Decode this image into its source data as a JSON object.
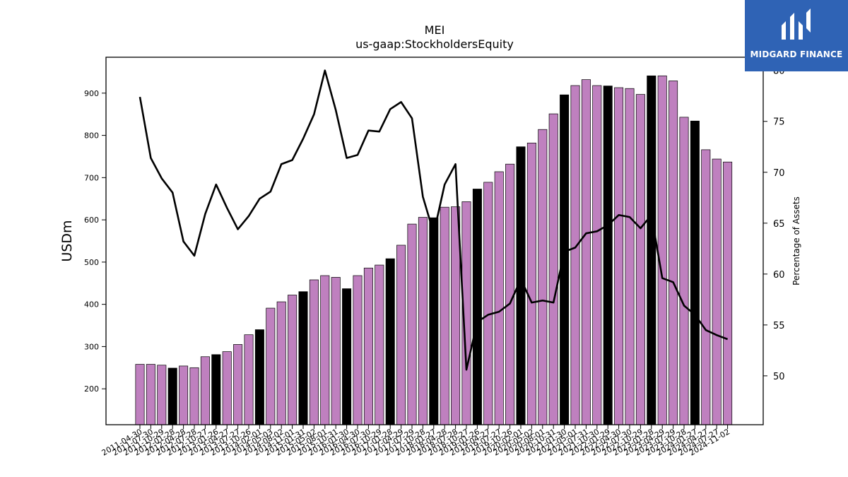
{
  "brand": {
    "name": "MIDGARD FINANCE",
    "logo_icon": "midgard-m-logo-icon",
    "background": "#2f63b5"
  },
  "chart_data": {
    "type": "bar",
    "title": "MEI",
    "subtitle": "us-gaap:StockholdersEquity",
    "ylabel": "USDm",
    "y2label": "Percentage of Assets",
    "ylim": [
      115,
      985
    ],
    "y2lim": [
      45.2,
      81.3
    ],
    "yticks": [
      200,
      300,
      400,
      500,
      600,
      700,
      800,
      900
    ],
    "y2ticks": [
      50,
      55,
      60,
      65,
      70,
      75,
      80
    ],
    "colors": {
      "bar": "#bf80bf",
      "bar_highlight": "#000000",
      "line": "#000000"
    },
    "categories": [
      "2011-04-30",
      "2011-07-30",
      "2011-10-29",
      "2012-01-28",
      "2012-04-28",
      "2012-07-28",
      "2012-10-27",
      "2013-01-26",
      "2013-04-27",
      "2013-07-27",
      "2013-10-26",
      "2014-02-01",
      "2014-05-03",
      "2014-08-02",
      "2014-11-01",
      "2015-01-31",
      "2015-05-02",
      "2015-08-01",
      "2015-10-31",
      "2016-01-30",
      "2016-04-30",
      "2016-07-30",
      "2016-10-29",
      "2017-01-28",
      "2017-04-29",
      "2017-07-29",
      "2017-10-28",
      "2018-01-27",
      "2018-04-28",
      "2018-07-28",
      "2018-10-27",
      "2019-01-26",
      "2019-04-27",
      "2019-07-27",
      "2019-10-26",
      "2020-02-01",
      "2020-05-02",
      "2020-08-01",
      "2020-10-31",
      "2021-01-30",
      "2021-05-01",
      "2021-07-31",
      "2021-10-30",
      "2022-01-29",
      "2022-04-30",
      "2022-07-30",
      "2022-10-29",
      "2023-01-28",
      "2023-04-29",
      "2023-07-29",
      "2023-10-28",
      "2024-01-27",
      "2024-04-27",
      "2024-07-27",
      "2024-11-02"
    ],
    "tick_labels_shown": [
      "2011-04-30",
      "2011-07-30",
      "2011-10-29",
      "2012-01-28",
      "2012-04-28",
      "2012-07-28",
      "2012-10-27",
      "2013-01-26",
      "2013-04-27",
      "2013-07-27",
      "2013-10-26",
      "2014-02-01",
      "2014-05-03",
      "2014-08-02",
      "2014-11-01",
      "2015-01-31",
      "2015-05-02",
      "2015-08-01",
      "2015-10-31",
      "2016-01-30",
      "2016-04-30",
      "2016-07-30",
      "2016-10-29",
      "2017-01-28",
      "2017-04-29",
      "2017-07-29",
      "2017-10-28",
      "2018-01-27",
      "2018-04-28",
      "2018-07-28",
      "2018-10-27",
      "2019-01-26",
      "2019-04-27",
      "2019-07-27",
      "2019-10-26",
      "2020-02-01",
      "2020-05-02",
      "2020-08-01",
      "2020-10-31",
      "2021-01-30",
      "2021-05-01",
      "2021-07-31",
      "2021-10-30",
      "2022-01-29",
      "2022-04-30",
      "2022-07-30",
      "2022-10-29",
      "2023-01-28",
      "2023-04-29",
      "2023-07-29",
      "2023-10-28",
      "2024-01-27",
      "2024-04-27",
      "2024-07-27",
      "2024-11-02"
    ],
    "series": [
      {
        "type": "bar",
        "axis": "left",
        "values": [
          258,
          258,
          256,
          249,
          254,
          250,
          276,
          281,
          288,
          305,
          328,
          340,
          391,
          406,
          422,
          430,
          458,
          468,
          464,
          437,
          468,
          486,
          493,
          508,
          540,
          590,
          606,
          605,
          630,
          631,
          643,
          673,
          689,
          714,
          732,
          773,
          782,
          814,
          851,
          896,
          918,
          932,
          918,
          917,
          913,
          911,
          897,
          941,
          941,
          929,
          843,
          834,
          766,
          744,
          737
        ],
        "highlight": [
          false,
          false,
          false,
          true,
          false,
          false,
          false,
          true,
          false,
          false,
          false,
          true,
          false,
          false,
          false,
          true,
          false,
          false,
          false,
          true,
          false,
          false,
          false,
          true,
          false,
          false,
          false,
          true,
          false,
          false,
          false,
          true,
          false,
          false,
          false,
          true,
          false,
          false,
          false,
          true,
          false,
          false,
          false,
          true,
          false,
          false,
          false,
          true,
          false,
          false,
          false,
          true,
          false,
          false,
          false
        ]
      },
      {
        "type": "line",
        "axis": "right",
        "values": [
          77.4,
          71.4,
          69.4,
          68.0,
          63.2,
          61.8,
          65.9,
          68.8,
          66.5,
          64.4,
          65.7,
          67.4,
          68.1,
          70.8,
          71.2,
          73.3,
          75.7,
          80.0,
          76.1,
          71.4,
          71.7,
          74.1,
          74.0,
          76.2,
          76.9,
          75.3,
          67.6,
          64.0,
          68.8,
          70.8,
          50.6,
          55.3,
          56.0,
          56.3,
          57.1,
          59.5,
          57.2,
          57.4,
          57.2,
          62.2,
          62.6,
          64.0,
          64.2,
          64.8,
          65.8,
          65.6,
          64.5,
          65.8,
          59.6,
          59.2,
          56.9,
          56.0,
          54.5,
          54.0,
          53.6
        ]
      }
    ]
  }
}
